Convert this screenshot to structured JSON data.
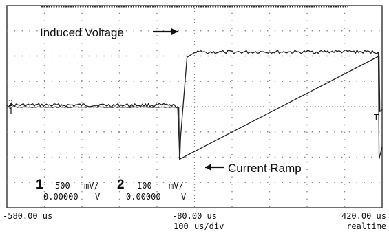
{
  "chart_data": {
    "type": "line",
    "title": "",
    "grid": true,
    "x_unit": "us",
    "xlim": [
      -580,
      420
    ],
    "x_ticks": [
      "-580.00 us",
      "-80.00 us",
      "420.00 us"
    ],
    "timebase": "100",
    "timebase_unit": "us/div",
    "acquisition_mode": "realtime",
    "series": [
      {
        "name": "Induced Voltage",
        "channel": "1",
        "scale": "500",
        "scale_unit": "mV/",
        "offset": "0.00000",
        "offset_unit": "V",
        "x": [
          -580,
          -150,
          -125,
          -119,
          -117,
          -100,
          -80,
          -50,
          0,
          100,
          200,
          300,
          410,
          412,
          420
        ],
        "y": [
          0.06,
          0.06,
          0.0,
          -2.06,
          -1.2,
          1.95,
          2.14,
          2.16,
          2.15,
          2.17,
          2.16,
          2.18,
          2.16,
          -2.06,
          -1.6
        ]
      },
      {
        "name": "Current Ramp",
        "channel": "2",
        "scale": "100",
        "scale_unit": "mV/",
        "offset": "0.00000",
        "offset_unit": "V",
        "x": [
          -580,
          -130,
          -122,
          -120,
          412,
          414,
          420
        ],
        "y": [
          -0.02,
          -0.02,
          -0.02,
          -2.08,
          2.0,
          -0.2,
          -0.12
        ]
      }
    ],
    "annotations": [
      {
        "text": "Induced Voltage",
        "series": "Induced Voltage"
      },
      {
        "text": "Current Ramp",
        "series": "Current Ramp"
      }
    ],
    "channel_markers": [
      "2",
      "1"
    ],
    "trigger_marker": "T"
  },
  "colors": {
    "background": "#ffffff",
    "trace": "#222222",
    "grid_dots": "#888888",
    "frame": "#333333"
  }
}
